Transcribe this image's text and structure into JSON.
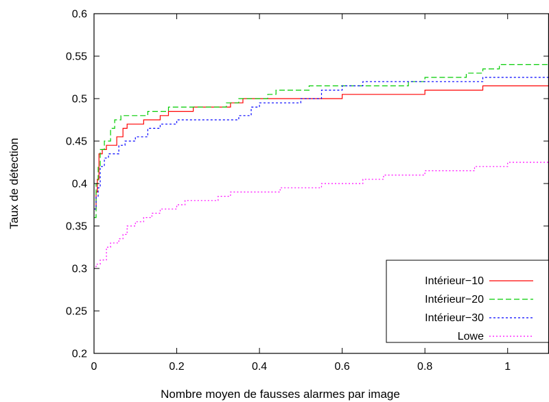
{
  "chart_data": {
    "type": "line",
    "xlabel": "Nombre moyen de fausses alarmes par image",
    "ylabel": "Taux de détection",
    "xlim": [
      0,
      1.1
    ],
    "ylim": [
      0.2,
      0.6
    ],
    "x_ticks": [
      0,
      0.2,
      0.4,
      0.6,
      0.8,
      1
    ],
    "x_tick_labels": [
      "0",
      "0.2",
      "0.4",
      "0.6",
      "0.8",
      "1"
    ],
    "y_ticks": [
      0.2,
      0.25,
      0.3,
      0.35,
      0.4,
      0.45,
      0.5,
      0.55,
      0.6
    ],
    "y_tick_labels": [
      "0.2",
      "0.25",
      "0.3",
      "0.35",
      "0.4",
      "0.45",
      "0.5",
      "0.55",
      "0.6"
    ],
    "grid": false,
    "legend_position": "bottom-right",
    "series": [
      {
        "name": "Intérieur−10",
        "color": "#ff0000",
        "dash": "solid",
        "x": [
          0,
          0.005,
          0.008,
          0.012,
          0.02,
          0.03,
          0.04,
          0.055,
          0.07,
          0.08,
          0.095,
          0.12,
          0.16,
          0.18,
          0.24,
          0.27,
          0.3,
          0.33,
          0.36,
          0.4,
          0.5,
          0.6,
          0.7,
          0.78,
          0.8,
          0.9,
          0.94,
          1.0,
          1.1
        ],
        "y": [
          0.37,
          0.39,
          0.405,
          0.435,
          0.44,
          0.445,
          0.445,
          0.455,
          0.465,
          0.47,
          0.47,
          0.475,
          0.48,
          0.485,
          0.49,
          0.49,
          0.49,
          0.495,
          0.5,
          0.5,
          0.5,
          0.505,
          0.505,
          0.505,
          0.51,
          0.51,
          0.515,
          0.515,
          0.515
        ]
      },
      {
        "name": "Intérieur−20",
        "color": "#00cc00",
        "dash": "8,4",
        "x": [
          0,
          0.005,
          0.01,
          0.015,
          0.025,
          0.04,
          0.05,
          0.065,
          0.13,
          0.18,
          0.3,
          0.32,
          0.35,
          0.42,
          0.44,
          0.52,
          0.54,
          0.62,
          0.76,
          0.8,
          0.9,
          0.94,
          0.98,
          1.1
        ],
        "y": [
          0.36,
          0.4,
          0.42,
          0.44,
          0.45,
          0.465,
          0.475,
          0.48,
          0.485,
          0.49,
          0.49,
          0.495,
          0.5,
          0.505,
          0.51,
          0.515,
          0.515,
          0.515,
          0.52,
          0.525,
          0.53,
          0.535,
          0.54,
          0.54
        ]
      },
      {
        "name": "Intérieur−30",
        "color": "#0000ff",
        "dash": "3,3",
        "x": [
          0,
          0.005,
          0.01,
          0.015,
          0.025,
          0.035,
          0.05,
          0.06,
          0.075,
          0.1,
          0.13,
          0.16,
          0.2,
          0.28,
          0.35,
          0.38,
          0.4,
          0.5,
          0.55,
          0.6,
          0.65,
          0.8,
          0.9,
          0.94,
          1.1
        ],
        "y": [
          0.37,
          0.385,
          0.395,
          0.42,
          0.43,
          0.435,
          0.435,
          0.445,
          0.45,
          0.455,
          0.465,
          0.47,
          0.475,
          0.475,
          0.48,
          0.49,
          0.495,
          0.5,
          0.51,
          0.515,
          0.52,
          0.52,
          0.52,
          0.525,
          0.525
        ]
      },
      {
        "name": "Lowe",
        "color": "#ff00ff",
        "dash": "2,3",
        "x": [
          0,
          0.005,
          0.015,
          0.03,
          0.04,
          0.06,
          0.07,
          0.08,
          0.1,
          0.12,
          0.14,
          0.16,
          0.2,
          0.22,
          0.26,
          0.3,
          0.33,
          0.36,
          0.4,
          0.45,
          0.5,
          0.55,
          0.6,
          0.65,
          0.7,
          0.75,
          0.8,
          0.88,
          0.92,
          0.96,
          1.0,
          1.1
        ],
        "y": [
          0.3,
          0.305,
          0.31,
          0.325,
          0.33,
          0.335,
          0.34,
          0.35,
          0.355,
          0.36,
          0.365,
          0.37,
          0.375,
          0.38,
          0.38,
          0.385,
          0.39,
          0.39,
          0.39,
          0.395,
          0.395,
          0.4,
          0.4,
          0.405,
          0.41,
          0.41,
          0.415,
          0.415,
          0.42,
          0.42,
          0.425,
          0.425
        ]
      }
    ]
  }
}
